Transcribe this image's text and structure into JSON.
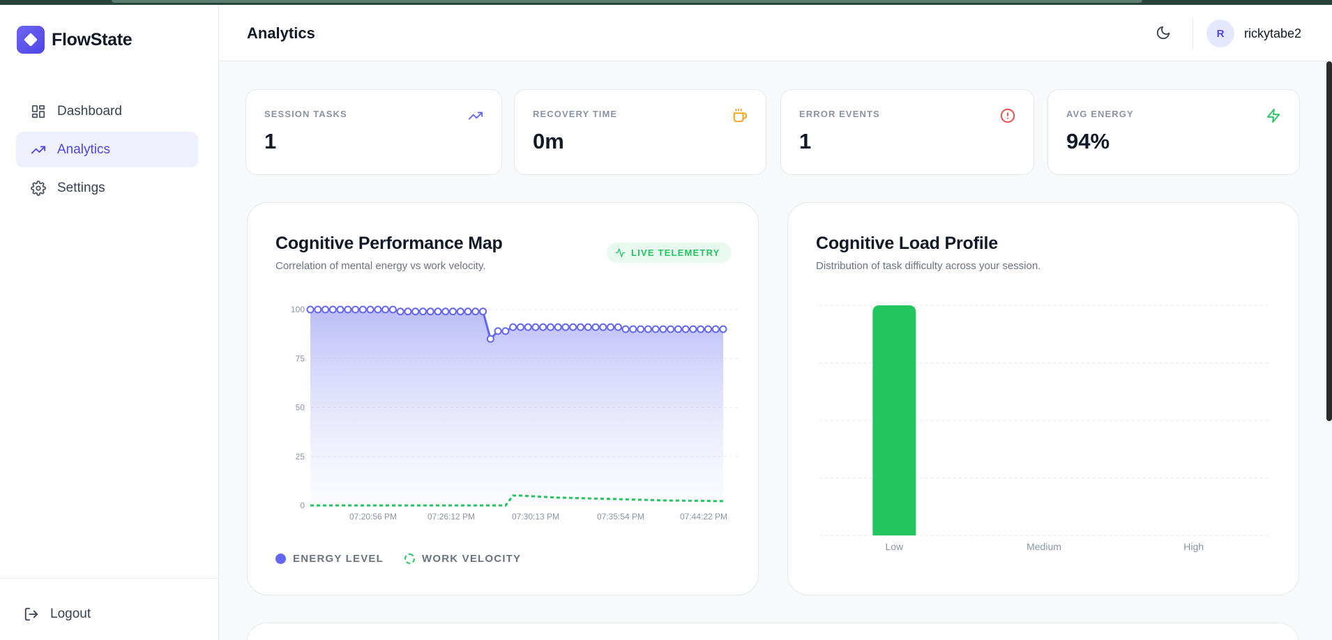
{
  "app": {
    "name": "FlowState"
  },
  "sidebar": {
    "items": [
      {
        "label": "Dashboard",
        "icon": "dashboard-icon",
        "active": false
      },
      {
        "label": "Analytics",
        "icon": "trending-up-icon",
        "active": true
      },
      {
        "label": "Settings",
        "icon": "gear-icon",
        "active": false
      }
    ],
    "logout_label": "Logout"
  },
  "header": {
    "title": "Analytics",
    "avatar_initial": "R",
    "username": "rickytabe2",
    "theme_icon": "moon-icon"
  },
  "stats": [
    {
      "label": "SESSION TASKS",
      "value": "1",
      "icon": "trending-up-icon",
      "color": "#6366f1"
    },
    {
      "label": "RECOVERY TIME",
      "value": "0m",
      "icon": "coffee-icon",
      "color": "#f59e0b"
    },
    {
      "label": "ERROR EVENTS",
      "value": "1",
      "icon": "alert-circle-icon",
      "color": "#ef4444"
    },
    {
      "label": "AVG ENERGY",
      "value": "94%",
      "icon": "zap-icon",
      "color": "#22c55e"
    }
  ],
  "performance": {
    "title": "Cognitive Performance Map",
    "subtitle": "Correlation of mental energy vs work velocity.",
    "badge": "LIVE TELEMETRY",
    "legend": [
      {
        "label": "ENERGY LEVEL",
        "color": "#6366f1"
      },
      {
        "label": "WORK VELOCITY",
        "color": "#22c55e"
      }
    ]
  },
  "load_profile": {
    "title": "Cognitive Load Profile",
    "subtitle": "Distribution of task difficulty across your session."
  },
  "colors": {
    "accent": "#4f46e5",
    "energy": "#6366f1",
    "velocity": "#22c55e",
    "bar": "#22c55e"
  },
  "chart_data": [
    {
      "type": "line",
      "title": "Cognitive Performance Map",
      "ylim": [
        0,
        100
      ],
      "yticks": [
        0,
        25,
        50,
        75,
        100
      ],
      "xticks": [
        "07:20:56 PM",
        "07:26:12 PM",
        "07:30:13 PM",
        "07:35:54 PM",
        "07:44:22 PM"
      ],
      "series": [
        {
          "name": "ENERGY LEVEL",
          "values": [
            100,
            100,
            100,
            100,
            100,
            100,
            100,
            100,
            100,
            100,
            100,
            100,
            99,
            99,
            99,
            99,
            99,
            99,
            99,
            99,
            99,
            99,
            99,
            99,
            85,
            89,
            89,
            91,
            91,
            91,
            91,
            91,
            91,
            91,
            91,
            91,
            91,
            91,
            91,
            91,
            91,
            91,
            90,
            90,
            90,
            90,
            90,
            90,
            90,
            90,
            90,
            90,
            90,
            90,
            90,
            90
          ]
        },
        {
          "name": "WORK VELOCITY",
          "values": [
            0,
            0,
            0,
            0,
            0,
            0,
            0,
            0,
            0,
            0,
            0,
            0,
            0,
            0,
            0,
            0,
            0,
            0,
            0,
            0,
            0,
            0,
            0,
            0,
            0,
            0,
            0,
            5,
            5,
            4.8,
            4.6,
            4.4,
            4.2,
            4,
            3.9,
            3.8,
            3.7,
            3.6,
            3.5,
            3.4,
            3.3,
            3.2,
            3.1,
            3.0,
            2.9,
            2.8,
            2.7,
            2.6,
            2.5,
            2.5,
            2.4,
            2.4,
            2.3,
            2.3,
            2.2,
            2.2
          ]
        }
      ]
    },
    {
      "type": "bar",
      "title": "Cognitive Load Profile",
      "categories": [
        "Low",
        "Medium",
        "High"
      ],
      "values": [
        1,
        0,
        0
      ],
      "ylim": [
        0,
        1
      ]
    }
  ]
}
